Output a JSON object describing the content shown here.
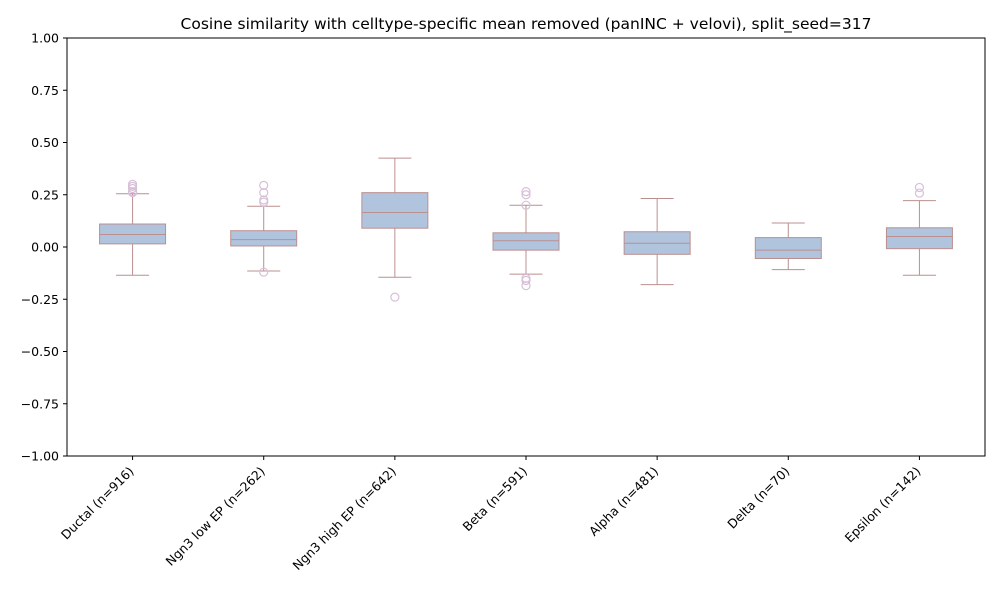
{
  "chart_data": {
    "type": "box",
    "title": "Cosine similarity with celltype-specific mean removed (panINC + velovi), split_seed=317",
    "xlabel": "",
    "ylabel": "",
    "ylim": [
      -1.0,
      1.0
    ],
    "yticks": [
      "−1.00",
      "−0.75",
      "−0.50",
      "−0.25",
      "0.00",
      "0.25",
      "0.50",
      "0.75",
      "1.00"
    ],
    "grid": false,
    "legend": "none",
    "colors": {
      "box_fill": "#b0c4de",
      "box_edge": "#bc8f8f",
      "flier_edge": "#d8bfd8"
    },
    "categories": [
      "Ductal (n=916)",
      "Ngn3 low EP (n=262)",
      "Ngn3 high EP (n=642)",
      "Beta (n=591)",
      "Alpha (n=481)",
      "Delta (n=70)",
      "Epsilon (n=142)"
    ],
    "boxes": [
      {
        "whisker_low": -0.135,
        "q1": 0.015,
        "median": 0.06,
        "q3": 0.11,
        "whisker_high": 0.255,
        "fliers": [
          0.3,
          0.29,
          0.28,
          0.265,
          0.26
        ]
      },
      {
        "whisker_low": -0.115,
        "q1": 0.005,
        "median": 0.035,
        "q3": 0.078,
        "whisker_high": 0.195,
        "fliers": [
          0.295,
          0.26,
          0.225,
          0.215,
          -0.12
        ]
      },
      {
        "whisker_low": -0.145,
        "q1": 0.09,
        "median": 0.165,
        "q3": 0.26,
        "whisker_high": 0.425,
        "fliers": [
          -0.24
        ]
      },
      {
        "whisker_low": -0.13,
        "q1": -0.015,
        "median": 0.03,
        "q3": 0.068,
        "whisker_high": 0.2,
        "fliers": [
          0.265,
          0.25,
          0.2,
          -0.15,
          -0.16,
          -0.185
        ]
      },
      {
        "whisker_low": -0.18,
        "q1": -0.035,
        "median": 0.018,
        "q3": 0.073,
        "whisker_high": 0.232,
        "fliers": []
      },
      {
        "whisker_low": -0.108,
        "q1": -0.055,
        "median": -0.015,
        "q3": 0.045,
        "whisker_high": 0.115,
        "fliers": []
      },
      {
        "whisker_low": -0.135,
        "q1": -0.008,
        "median": 0.05,
        "q3": 0.092,
        "whisker_high": 0.222,
        "fliers": [
          0.285,
          0.258
        ]
      }
    ]
  }
}
